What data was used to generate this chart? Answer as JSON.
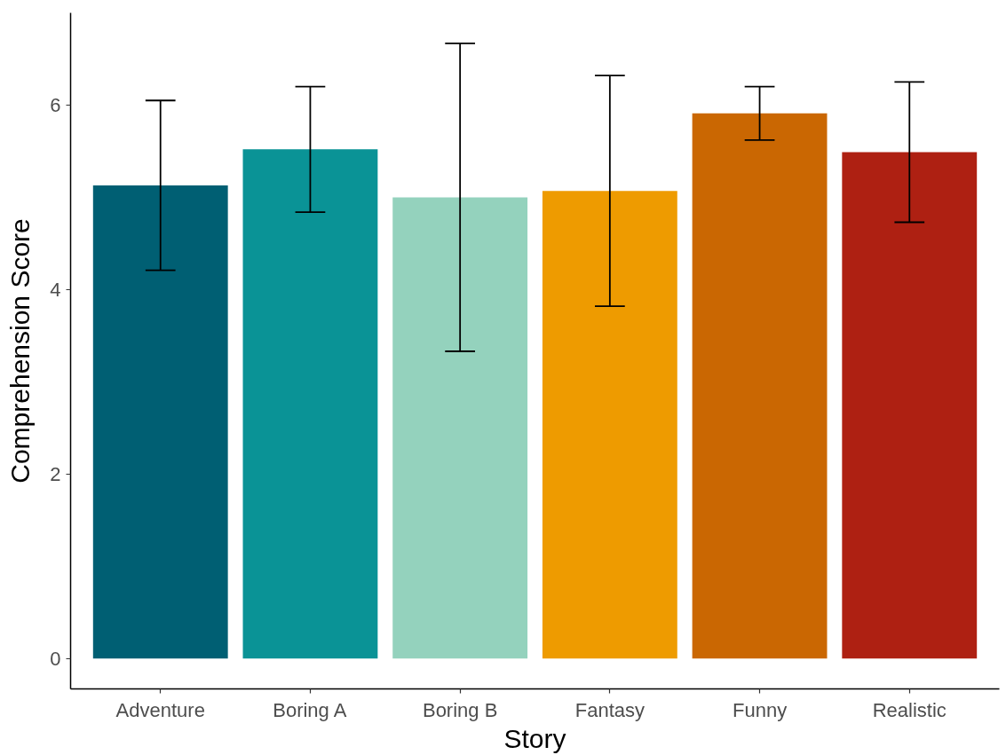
{
  "chart_data": {
    "type": "bar",
    "xlabel": "Story",
    "ylabel": "Comprehension Score",
    "categories": [
      "Adventure",
      "Boring A",
      "Boring B",
      "Fantasy",
      "Funny",
      "Realistic"
    ],
    "values": [
      5.13,
      5.52,
      5.0,
      5.07,
      5.91,
      5.49
    ],
    "errors": [
      0.92,
      0.68,
      1.67,
      1.25,
      0.29,
      0.76
    ],
    "colors": [
      "#005f73",
      "#0a9396",
      "#94d2bd",
      "#ee9b00",
      "#ca6702",
      "#ae2012"
    ],
    "ylim": [
      -0.33,
      7.0
    ],
    "yticks": [
      0,
      2,
      4,
      6
    ]
  }
}
